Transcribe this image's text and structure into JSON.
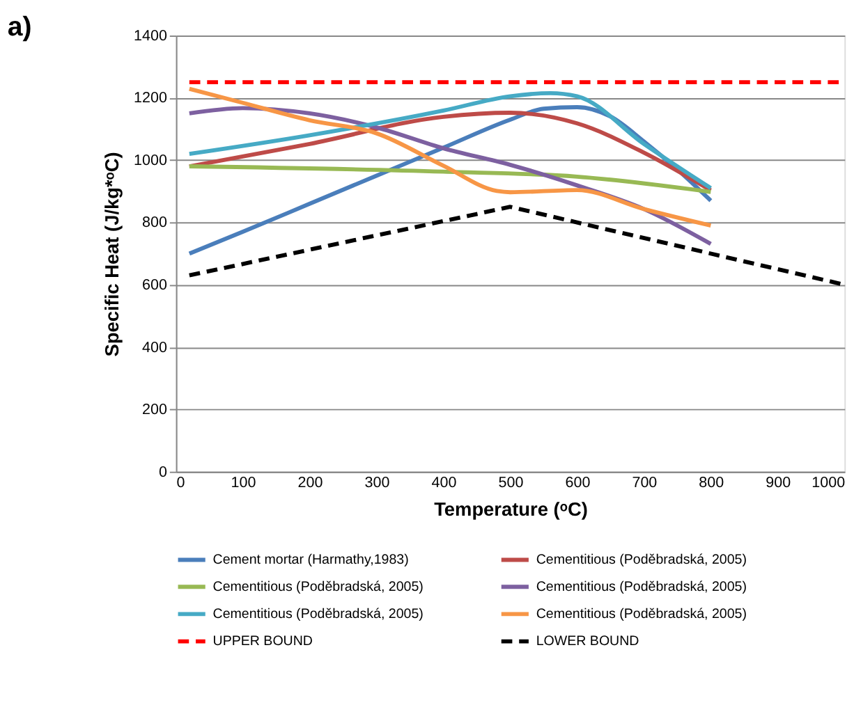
{
  "chart_data": {
    "type": "line",
    "title": "a)",
    "xlabel": "Temperature (ᵒC)",
    "ylabel": "Specific Heat (J/kg*ᵒC)",
    "xlim": [
      0,
      1000
    ],
    "xticks": [
      0,
      100,
      200,
      300,
      400,
      500,
      600,
      700,
      800,
      900,
      1000
    ],
    "ylim": [
      0,
      1400
    ],
    "yticks": [
      0,
      200,
      400,
      600,
      800,
      1000,
      1200,
      1400
    ],
    "grid": "y",
    "legend": "bottom",
    "marker": "none",
    "series": [
      {
        "name": "Cement mortar (Harmathy,1983)",
        "color": "#4a7ebb",
        "line_style": "solid",
        "x": [
          20,
          100,
          200,
          300,
          400,
          500,
          550,
          600,
          650,
          700,
          750,
          800
        ],
        "values": [
          700,
          770,
          860,
          950,
          1040,
          1130,
          1165,
          1170,
          1140,
          1060,
          970,
          870
        ]
      },
      {
        "name": "Cementitious (Poděbradská, 2005)",
        "color": "#be4b48",
        "line_style": "solid",
        "x": [
          20,
          200,
          400,
          500,
          600,
          700,
          800
        ],
        "values": [
          980,
          1052,
          1139,
          1152,
          1118,
          1024,
          903
        ]
      },
      {
        "name": "Cementitious (Poděbradská, 2005)",
        "color": "#98b954",
        "line_style": "solid",
        "x": [
          20,
          400,
          600,
          800
        ],
        "values": [
          980,
          963,
          947,
          898
        ]
      },
      {
        "name": "Cementitious (Poděbradská, 2005)",
        "color": "#7d60a0",
        "line_style": "solid",
        "x": [
          20,
          100,
          200,
          300,
          400,
          500,
          600,
          700,
          800
        ],
        "values": [
          1150,
          1167,
          1150,
          1105,
          1038,
          985,
          919,
          843,
          731
        ]
      },
      {
        "name": "Cementitious (Poděbradská, 2005)",
        "color": "#46aac5",
        "line_style": "solid",
        "x": [
          20,
          200,
          400,
          500,
          560,
          600,
          700,
          800
        ],
        "values": [
          1020,
          1080,
          1159,
          1205,
          1215,
          1205,
          1052,
          910
        ]
      },
      {
        "name": "Cementitious (Poděbradská, 2005)",
        "color": "#f79646",
        "line_style": "solid",
        "x": [
          20,
          100,
          200,
          300,
          400,
          480,
          500,
          600,
          700,
          800
        ],
        "values": [
          1229,
          1184,
          1128,
          1086,
          982,
          901,
          897,
          904,
          843,
          790
        ]
      },
      {
        "name": "UPPER BOUND",
        "color": "#ff0000",
        "line_style": "dashed",
        "x": [
          20,
          1000
        ],
        "values": [
          1250,
          1250
        ]
      },
      {
        "name": "LOWER BOUND",
        "color": "#000000",
        "line_style": "dashed",
        "x": [
          20,
          500,
          1000
        ],
        "values": [
          630,
          850,
          600
        ]
      }
    ]
  }
}
